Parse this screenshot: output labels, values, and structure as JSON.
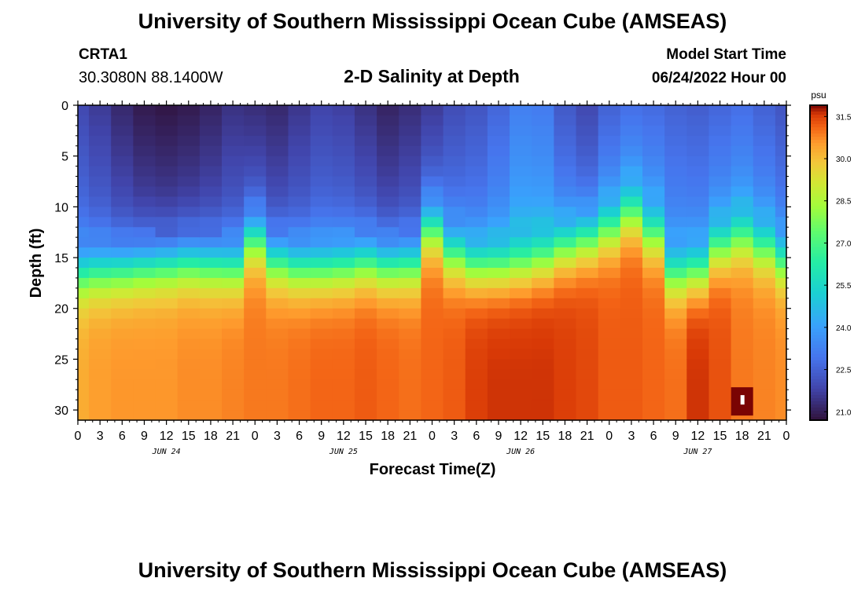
{
  "header": {
    "title": "University of Southern Mississippi Ocean Cube (AMSEAS)",
    "station_id": "CRTA1",
    "station_coords": "30.3080N  88.1400W",
    "plot_title": "2-D Salinity at Depth",
    "model_start_label": "Model Start Time",
    "model_start_value": "06/24/2022 Hour 00"
  },
  "footer": {
    "title": "University of Southern Mississippi Ocean Cube (AMSEAS)"
  },
  "chart_data": {
    "type": "heatmap",
    "title": "2-D Salinity at Depth",
    "xlabel": "Forecast Time(Z)",
    "ylabel": "Depth (ft)",
    "x_hours": [
      0,
      96
    ],
    "x_tick_labels": [
      "0",
      "3",
      "6",
      "9",
      "12",
      "15",
      "18",
      "21",
      "0",
      "3",
      "6",
      "9",
      "12",
      "15",
      "18",
      "21",
      "0",
      "3",
      "6",
      "9",
      "12",
      "15",
      "18",
      "21",
      "0",
      "3",
      "6",
      "9",
      "12",
      "15",
      "18",
      "21",
      "0"
    ],
    "date_labels": [
      {
        "hour": 12,
        "label": "JUN 24"
      },
      {
        "hour": 36,
        "label": "JUN 25"
      },
      {
        "hour": 60,
        "label": "JUN 26"
      },
      {
        "hour": 84,
        "label": "JUN 27"
      }
    ],
    "y_range": [
      0,
      31
    ],
    "y_ticks": [
      0,
      5,
      10,
      15,
      20,
      25,
      30
    ],
    "colorbar": {
      "unit": "psu",
      "range": [
        20.7,
        31.9
      ],
      "ticks": [
        "31.5",
        "30.0",
        "28.5",
        "27.0",
        "25.5",
        "24.0",
        "22.5",
        "21.0"
      ]
    },
    "layer_depths_ft": [
      0.5,
      1.5,
      2.5,
      3.5,
      4.5,
      5.5,
      6.5,
      7.5,
      8.5,
      9.5,
      10.5,
      11.5,
      12.5,
      13.5,
      14.5,
      15.5,
      16.5,
      17.5,
      18.5,
      19.5,
      20.5,
      21.5,
      22.5,
      23.5,
      24.5,
      25.5,
      26.5,
      27.5,
      28.5,
      29.5,
      30.5
    ],
    "time_hours": [
      0,
      3,
      6,
      9,
      12,
      15,
      18,
      21,
      24,
      27,
      30,
      33,
      36,
      39,
      42,
      45,
      48,
      51,
      54,
      57,
      60,
      63,
      66,
      69,
      72,
      75,
      78,
      81,
      84,
      87,
      90,
      93,
      96
    ],
    "thermocline_depth_ft": [
      16.5,
      16.2,
      16.0,
      15.7,
      15.5,
      15.3,
      15.5,
      15.7,
      13.0,
      15.2,
      15.8,
      15.9,
      15.7,
      15.3,
      15.6,
      15.5,
      12.0,
      14.5,
      15.6,
      15.7,
      15.5,
      15.0,
      13.8,
      13.0,
      12.0,
      10.5,
      12.5,
      16.5,
      16.2,
      13.8,
      12.8,
      13.8,
      15.2
    ],
    "surface_salinity_psu": [
      22.3,
      22.0,
      21.6,
      21.3,
      21.2,
      21.3,
      21.5,
      21.8,
      21.7,
      21.6,
      21.9,
      22.2,
      22.1,
      21.8,
      21.5,
      21.7,
      22.0,
      22.4,
      22.6,
      23.0,
      23.6,
      23.5,
      22.7,
      22.3,
      22.9,
      23.2,
      23.1,
      22.9,
      22.8,
      23.0,
      23.2,
      22.9,
      22.6
    ],
    "bottom_salinity_psu": [
      30.3,
      30.5,
      30.6,
      30.6,
      30.6,
      30.7,
      30.7,
      30.8,
      30.9,
      30.9,
      31.0,
      31.1,
      31.1,
      31.2,
      31.1,
      31.0,
      31.1,
      31.2,
      31.5,
      31.6,
      31.6,
      31.6,
      31.5,
      31.4,
      31.2,
      31.2,
      31.1,
      31.0,
      31.6,
      31.3,
      30.9,
      30.8,
      30.7
    ],
    "annotation": {
      "hour": 90,
      "depth_ft": 29,
      "value_psu": 31.9
    }
  }
}
